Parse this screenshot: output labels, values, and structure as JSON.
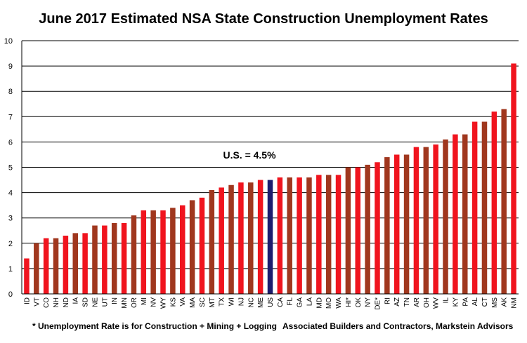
{
  "chart_data": {
    "type": "bar",
    "title": "June 2017 Estimated NSA State Construction Unemployment Rates",
    "xlabel": "",
    "ylabel": "",
    "ylim": [
      0,
      10
    ],
    "yticks": [
      0,
      1,
      2,
      3,
      4,
      5,
      6,
      7,
      8,
      9,
      10
    ],
    "grid": true,
    "categories": [
      "ID",
      "VT",
      "CO",
      "NH",
      "ND",
      "IA",
      "SD",
      "NE",
      "UT",
      "IN",
      "MN",
      "OR",
      "MI",
      "NV",
      "WY",
      "KS",
      "VA",
      "MA",
      "SC",
      "MT",
      "TX",
      "WI",
      "NJ",
      "NC",
      "ME",
      "US",
      "CA",
      "FL",
      "GA",
      "LA",
      "MD",
      "MO",
      "WA",
      "HI*",
      "OK",
      "NY",
      "DE*",
      "RI",
      "AZ",
      "TN",
      "AR",
      "OH",
      "WV",
      "IL",
      "KY",
      "PA",
      "AL",
      "CT",
      "MS",
      "AK",
      "NM"
    ],
    "values": [
      1.4,
      2.0,
      2.2,
      2.2,
      2.3,
      2.4,
      2.4,
      2.7,
      2.7,
      2.8,
      2.8,
      3.1,
      3.3,
      3.3,
      3.3,
      3.4,
      3.5,
      3.7,
      3.8,
      4.1,
      4.2,
      4.3,
      4.4,
      4.4,
      4.5,
      4.5,
      4.6,
      4.6,
      4.6,
      4.6,
      4.7,
      4.7,
      4.7,
      5.0,
      5.0,
      5.1,
      5.2,
      5.4,
      5.5,
      5.5,
      5.8,
      5.8,
      5.9,
      6.1,
      6.3,
      6.3,
      6.8,
      6.8,
      7.2,
      7.3,
      9.1
    ],
    "colors": {
      "red": "#f0141e",
      "brown": "#a0371e",
      "us": "#1c1c6e"
    },
    "annotation": "U.S. = 4.5%"
  },
  "footer": {
    "left": "* Unemployment Rate is for Construction + Mining + Logging",
    "right": "Associated Builders and Contractors, Markstein Advisors"
  }
}
